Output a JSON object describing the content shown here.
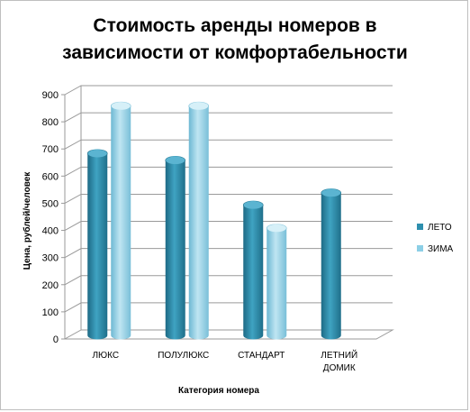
{
  "chart_data": {
    "type": "bar",
    "title_line1": "Стоимость аренды номеров в",
    "title_line2": "зависимости от комфортабельности",
    "xlabel": "Категория  номера",
    "ylabel": "Цена, рублей/человек",
    "categories": [
      "ЛЮКС",
      "ПОЛУЛЮКС",
      "СТАНДАРТ",
      "ЛЕТНИЙ ДОМИК"
    ],
    "category_lines": [
      [
        "ЛЮКС"
      ],
      [
        "ПОЛУЛЮКС"
      ],
      [
        "СТАНДАРТ"
      ],
      [
        "ЛЕТНИЙ",
        "ДОМИК"
      ]
    ],
    "ylim": [
      0,
      900
    ],
    "yticks": [
      0,
      100,
      200,
      300,
      400,
      500,
      600,
      700,
      800,
      900
    ],
    "grid": true,
    "legend_position": "right",
    "series": [
      {
        "name": "ЛЕТО",
        "color": "#2e8fae",
        "values": [
          670,
          645,
          480,
          525
        ]
      },
      {
        "name": "ЗИМА",
        "color": "#8ccfe6",
        "values": [
          845,
          845,
          395,
          null
        ]
      }
    ]
  }
}
